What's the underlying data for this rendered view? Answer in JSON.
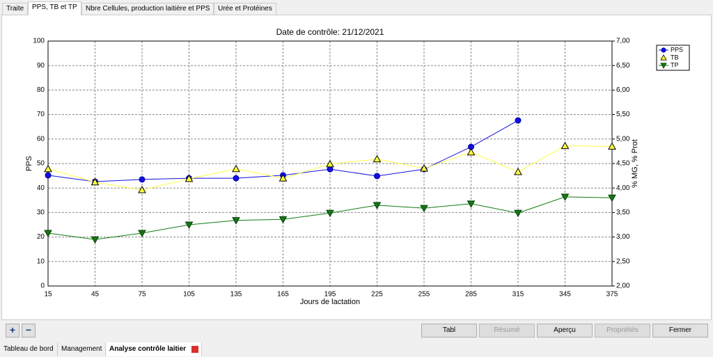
{
  "top_tabs": [
    "Traite",
    "PPS, TB et TP",
    "Nbre Cellules, production laitière et PPS",
    "Urée et Protéines"
  ],
  "chart_data": {
    "type": "line",
    "title": "Date de contrôle:  21/12/2021",
    "x_label": "Jours de lactation",
    "y_label": "PPS",
    "y2_label": "% MG, % Prot",
    "x": [
      15,
      45,
      75,
      105,
      135,
      165,
      195,
      225,
      255,
      285,
      315,
      345,
      375
    ],
    "xlim": [
      15,
      375
    ],
    "xticks": [
      15,
      45,
      75,
      105,
      135,
      165,
      195,
      225,
      255,
      285,
      315,
      345,
      375
    ],
    "ylim": [
      0,
      100
    ],
    "yticks": [
      0,
      10,
      20,
      30,
      40,
      50,
      60,
      70,
      80,
      90,
      100
    ],
    "y2lim": [
      2,
      7
    ],
    "y2ticks": [
      {
        "value": 2,
        "label": "2,00"
      },
      {
        "value": 2.5,
        "label": "2,50"
      },
      {
        "value": 3,
        "label": "3,00"
      },
      {
        "value": 3.5,
        "label": "3,50"
      },
      {
        "value": 4,
        "label": "4,00"
      },
      {
        "value": 4.5,
        "label": "4,50"
      },
      {
        "value": 5,
        "label": "5,00"
      },
      {
        "value": 5.5,
        "label": "5,50"
      },
      {
        "value": 6,
        "label": "6,00"
      },
      {
        "value": 6.5,
        "label": "6,50"
      },
      {
        "value": 7,
        "label": "7,00"
      }
    ],
    "grid": true,
    "legend": "top-right",
    "series": [
      {
        "name": "PPS",
        "color": "#1010e0",
        "marker": "circle",
        "axis": "y",
        "values": [
          45.2,
          42.6,
          43.5,
          44,
          44,
          45.2,
          47.7,
          44.9,
          47.7,
          56.8,
          67.6,
          null,
          null
        ]
      },
      {
        "name": "TB",
        "color": "#ffff40",
        "marker": "triangle-up",
        "axis": "y2",
        "values": [
          4.39,
          4.12,
          3.96,
          4.19,
          4.39,
          4.2,
          4.49,
          4.59,
          4.4,
          4.73,
          4.33,
          4.86,
          4.85
        ]
      },
      {
        "name": "TP",
        "color": "#127a12",
        "marker": "triangle-down",
        "axis": "y2",
        "values": [
          3.08,
          2.95,
          3.08,
          3.25,
          3.34,
          3.36,
          3.49,
          3.65,
          3.59,
          3.68,
          3.49,
          3.82,
          3.8
        ]
      }
    ]
  },
  "zoom_buttons": [
    "+",
    "−"
  ],
  "buttons": [
    {
      "label": "Tabl",
      "enabled": true
    },
    {
      "label": "Résumé",
      "enabled": false
    },
    {
      "label": "Aperçu",
      "enabled": true
    },
    {
      "label": "Propriétés",
      "enabled": false
    },
    {
      "label": "Fermer",
      "enabled": true
    }
  ],
  "bottom_tabs": [
    "Tableau de bord",
    "Management",
    "Analyse contrôle laitier"
  ]
}
